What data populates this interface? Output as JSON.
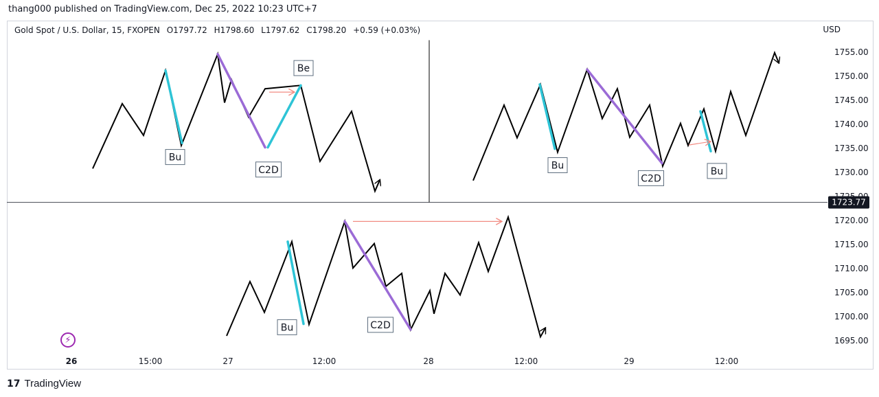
{
  "header": {
    "published": "thang000 published on TradingView.com, Dec 25, 2022 10:23 UTC+7"
  },
  "legend": {
    "symbol": "Gold Spot / U.S. Dollar, 15, FXOPEN",
    "open": "O1797.72",
    "high": "H1798.60",
    "low": "L1797.62",
    "close": "C1798.20",
    "change": "+0.59 (+0.03%)"
  },
  "currency": "USD",
  "footer": {
    "brand": "TradingView",
    "logo": "17"
  },
  "icons": {
    "bolt": "lightning-icon"
  },
  "colors": {
    "price_line": "#000000",
    "bull_leg": "#2ec4d6",
    "c2d_leg": "#9b6bd6",
    "arrow": "#f28b82",
    "divider": "#000000",
    "price_badge_bg": "#131722"
  },
  "chart_data": {
    "type": "line",
    "y_axis": {
      "ticks": [
        1755,
        1750,
        1745,
        1740,
        1735,
        1730,
        1725,
        1720,
        1715,
        1710,
        1705,
        1700,
        1695
      ],
      "tick_labels": [
        "1755.00",
        "1750.00",
        "1745.00",
        "1740.00",
        "1735.00",
        "1730.00",
        "1725.00",
        "1720.00",
        "1715.00",
        "1710.00",
        "1705.00",
        "1700.00",
        "1695.00"
      ],
      "range": [
        1692,
        1758
      ],
      "current_price": 1723.77,
      "current_price_label": "1723.77"
    },
    "x_axis": {
      "range": [
        0,
        1195
      ],
      "ticks": [
        {
          "x": 104,
          "label": "26",
          "bold": true
        },
        {
          "x": 219,
          "label": "15:00",
          "bold": false
        },
        {
          "x": 332,
          "label": "27",
          "bold": false
        },
        {
          "x": 472,
          "label": "12:00",
          "bold": false
        },
        {
          "x": 624,
          "label": "28",
          "bold": false
        },
        {
          "x": 766,
          "label": "12:00",
          "bold": false
        },
        {
          "x": 916,
          "label": "29",
          "bold": false
        },
        {
          "x": 1058,
          "label": "12:00",
          "bold": false
        }
      ]
    },
    "reference_line": {
      "price": 1723.77
    },
    "series": [
      {
        "id": "path1",
        "points": [
          [
            135,
            1730.8
          ],
          [
            178,
            1744.3
          ],
          [
            209,
            1737.7
          ],
          [
            241,
            1751.2
          ],
          [
            264,
            1735.6
          ],
          [
            317,
            1754.6
          ],
          [
            327,
            1744.5
          ],
          [
            337,
            1749.3
          ],
          [
            362,
            1741.5
          ],
          [
            386,
            1747.4
          ],
          [
            438,
            1748.1
          ],
          [
            466,
            1732.3
          ],
          [
            512,
            1742.7
          ],
          [
            546,
            1726.1
          ],
          [
            553,
            1728.4
          ]
        ],
        "arrowhead": "end"
      },
      {
        "id": "path2",
        "points": [
          [
            689,
            1728.3
          ],
          [
            734,
            1744.0
          ],
          [
            753,
            1737.2
          ],
          [
            787,
            1748.3
          ],
          [
            812,
            1734.2
          ],
          [
            855,
            1751.4
          ],
          [
            877,
            1741.2
          ],
          [
            899,
            1747.4
          ],
          [
            917,
            1737.3
          ],
          [
            946,
            1744.0
          ],
          [
            965,
            1731.3
          ],
          [
            991,
            1740.2
          ],
          [
            1002,
            1735.6
          ],
          [
            1025,
            1743.2
          ],
          [
            1042,
            1734.4
          ],
          [
            1064,
            1746.8
          ],
          [
            1086,
            1737.7
          ],
          [
            1128,
            1754.9
          ],
          [
            1134,
            1752.8
          ]
        ],
        "arrowhead": "end"
      },
      {
        "id": "path3",
        "points": [
          [
            330,
            1696.0
          ],
          [
            364,
            1707.3
          ],
          [
            385,
            1700.9
          ],
          [
            425,
            1715.6
          ],
          [
            450,
            1698.4
          ],
          [
            502,
            1719.8
          ],
          [
            514,
            1710.1
          ],
          [
            545,
            1715.2
          ],
          [
            562,
            1706.3
          ],
          [
            585,
            1709.0
          ],
          [
            598,
            1697.3
          ],
          [
            626,
            1705.4
          ],
          [
            632,
            1700.6
          ],
          [
            648,
            1709.0
          ],
          [
            670,
            1704.5
          ],
          [
            697,
            1715.4
          ],
          [
            711,
            1709.4
          ],
          [
            740,
            1720.7
          ],
          [
            787,
            1695.8
          ],
          [
            794,
            1697.6
          ]
        ],
        "arrowhead": "end"
      }
    ],
    "legs": [
      {
        "kind": "bull",
        "from": [
          241,
          1751.2
        ],
        "to": [
          265,
          1736.1
        ]
      },
      {
        "kind": "c2d",
        "from": [
          317,
          1754.6
        ],
        "to": [
          386,
          1735.2
        ]
      },
      {
        "kind": "bull",
        "from": [
          390,
          1735.2
        ],
        "to": [
          438,
          1748.1
        ]
      },
      {
        "kind": "bull",
        "from": [
          786,
          1748.3
        ],
        "to": [
          808,
          1734.9
        ]
      },
      {
        "kind": "c2d",
        "from": [
          855,
          1751.4
        ],
        "to": [
          964,
          1731.9
        ]
      },
      {
        "kind": "bull",
        "from": [
          1020,
          1742.7
        ],
        "to": [
          1035,
          1734.4
        ]
      },
      {
        "kind": "bull",
        "from": [
          419,
          1715.6
        ],
        "to": [
          442,
          1698.5
        ]
      },
      {
        "kind": "c2d",
        "from": [
          502,
          1719.8
        ],
        "to": [
          598,
          1697.3
        ]
      }
    ],
    "arrows": [
      {
        "from": [
          392,
          1746.7
        ],
        "to": [
          428,
          1746.7
        ]
      },
      {
        "from": [
          1003,
          1735.7
        ],
        "to": [
          1034,
          1736.4
        ]
      },
      {
        "from": [
          514,
          1719.8
        ],
        "to": [
          730,
          1719.8
        ]
      }
    ],
    "annotations": [
      {
        "text": "Bu",
        "x": 255,
        "y": 1733.2
      },
      {
        "text": "C2D",
        "x": 391,
        "y": 1730.6
      },
      {
        "text": "Be",
        "x": 442,
        "y": 1751.7
      },
      {
        "text": "Bu",
        "x": 812,
        "y": 1731.5
      },
      {
        "text": "C2D",
        "x": 948,
        "y": 1728.8
      },
      {
        "text": "Bu",
        "x": 1044,
        "y": 1730.3
      },
      {
        "text": "Bu",
        "x": 418,
        "y": 1697.8
      },
      {
        "text": "C2D",
        "x": 554,
        "y": 1698.3
      }
    ],
    "divider": {
      "x": 625,
      "from_price": 1757.5,
      "to_price": 1723.8
    }
  }
}
